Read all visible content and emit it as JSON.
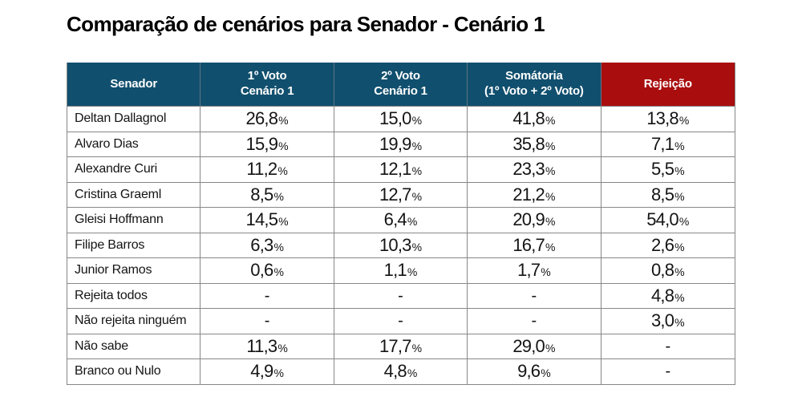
{
  "title": "Comparação de cenários para Senador - Cenário 1",
  "table": {
    "header": {
      "col1": "Senador",
      "col2_line1": "1º Voto",
      "col2_line2": "Cenário 1",
      "col3_line1": "2º Voto",
      "col3_line2": "Cenário 1",
      "col4_line1": "Somátoria",
      "col4_line2": "(1º Voto + 2º Voto)",
      "col5": "Rejeição"
    }
  },
  "colors": {
    "header_blue": "#114f6e",
    "header_red": "#a90d0e",
    "grid_line": "#878787",
    "text": "#141414",
    "background": "#ffffff"
  },
  "chart_data": {
    "type": "table",
    "title": "Comparação de cenários para Senador - Cenário 1",
    "columns": [
      "Senador",
      "1º Voto Cenário 1",
      "2º Voto Cenário 1",
      "Somátoria (1º Voto + 2º Voto)",
      "Rejeição"
    ],
    "rows": [
      [
        "Deltan Dallagnol",
        "26,8%",
        "15,0%",
        "41,8%",
        "13,8%"
      ],
      [
        "Alvaro Dias",
        "15,9%",
        "19,9%",
        "35,8%",
        "7,1%"
      ],
      [
        "Alexandre Curi",
        "11,2%",
        "12,1%",
        "23,3%",
        "5,5%"
      ],
      [
        "Cristina Graeml",
        "8,5%",
        "12,7%",
        "21,2%",
        "8,5%"
      ],
      [
        "Gleisi Hoffmann",
        "14,5%",
        "6,4%",
        "20,9%",
        "54,0%"
      ],
      [
        "Filipe Barros",
        "6,3%",
        "10,3%",
        "16,7%",
        "2,6%"
      ],
      [
        "Junior Ramos",
        "0,6%",
        "1,1%",
        "1,7%",
        "0,8%"
      ],
      [
        "Rejeita todos",
        "-",
        "-",
        "-",
        "4,8%"
      ],
      [
        "Não rejeita ninguém",
        "-",
        "-",
        "-",
        "3,0%"
      ],
      [
        "Não sabe",
        "11,3%",
        "17,7%",
        "29,0%",
        "-"
      ],
      [
        "Branco ou Nulo",
        "4,9%",
        "4,8%",
        "9,6%",
        "-"
      ]
    ]
  }
}
